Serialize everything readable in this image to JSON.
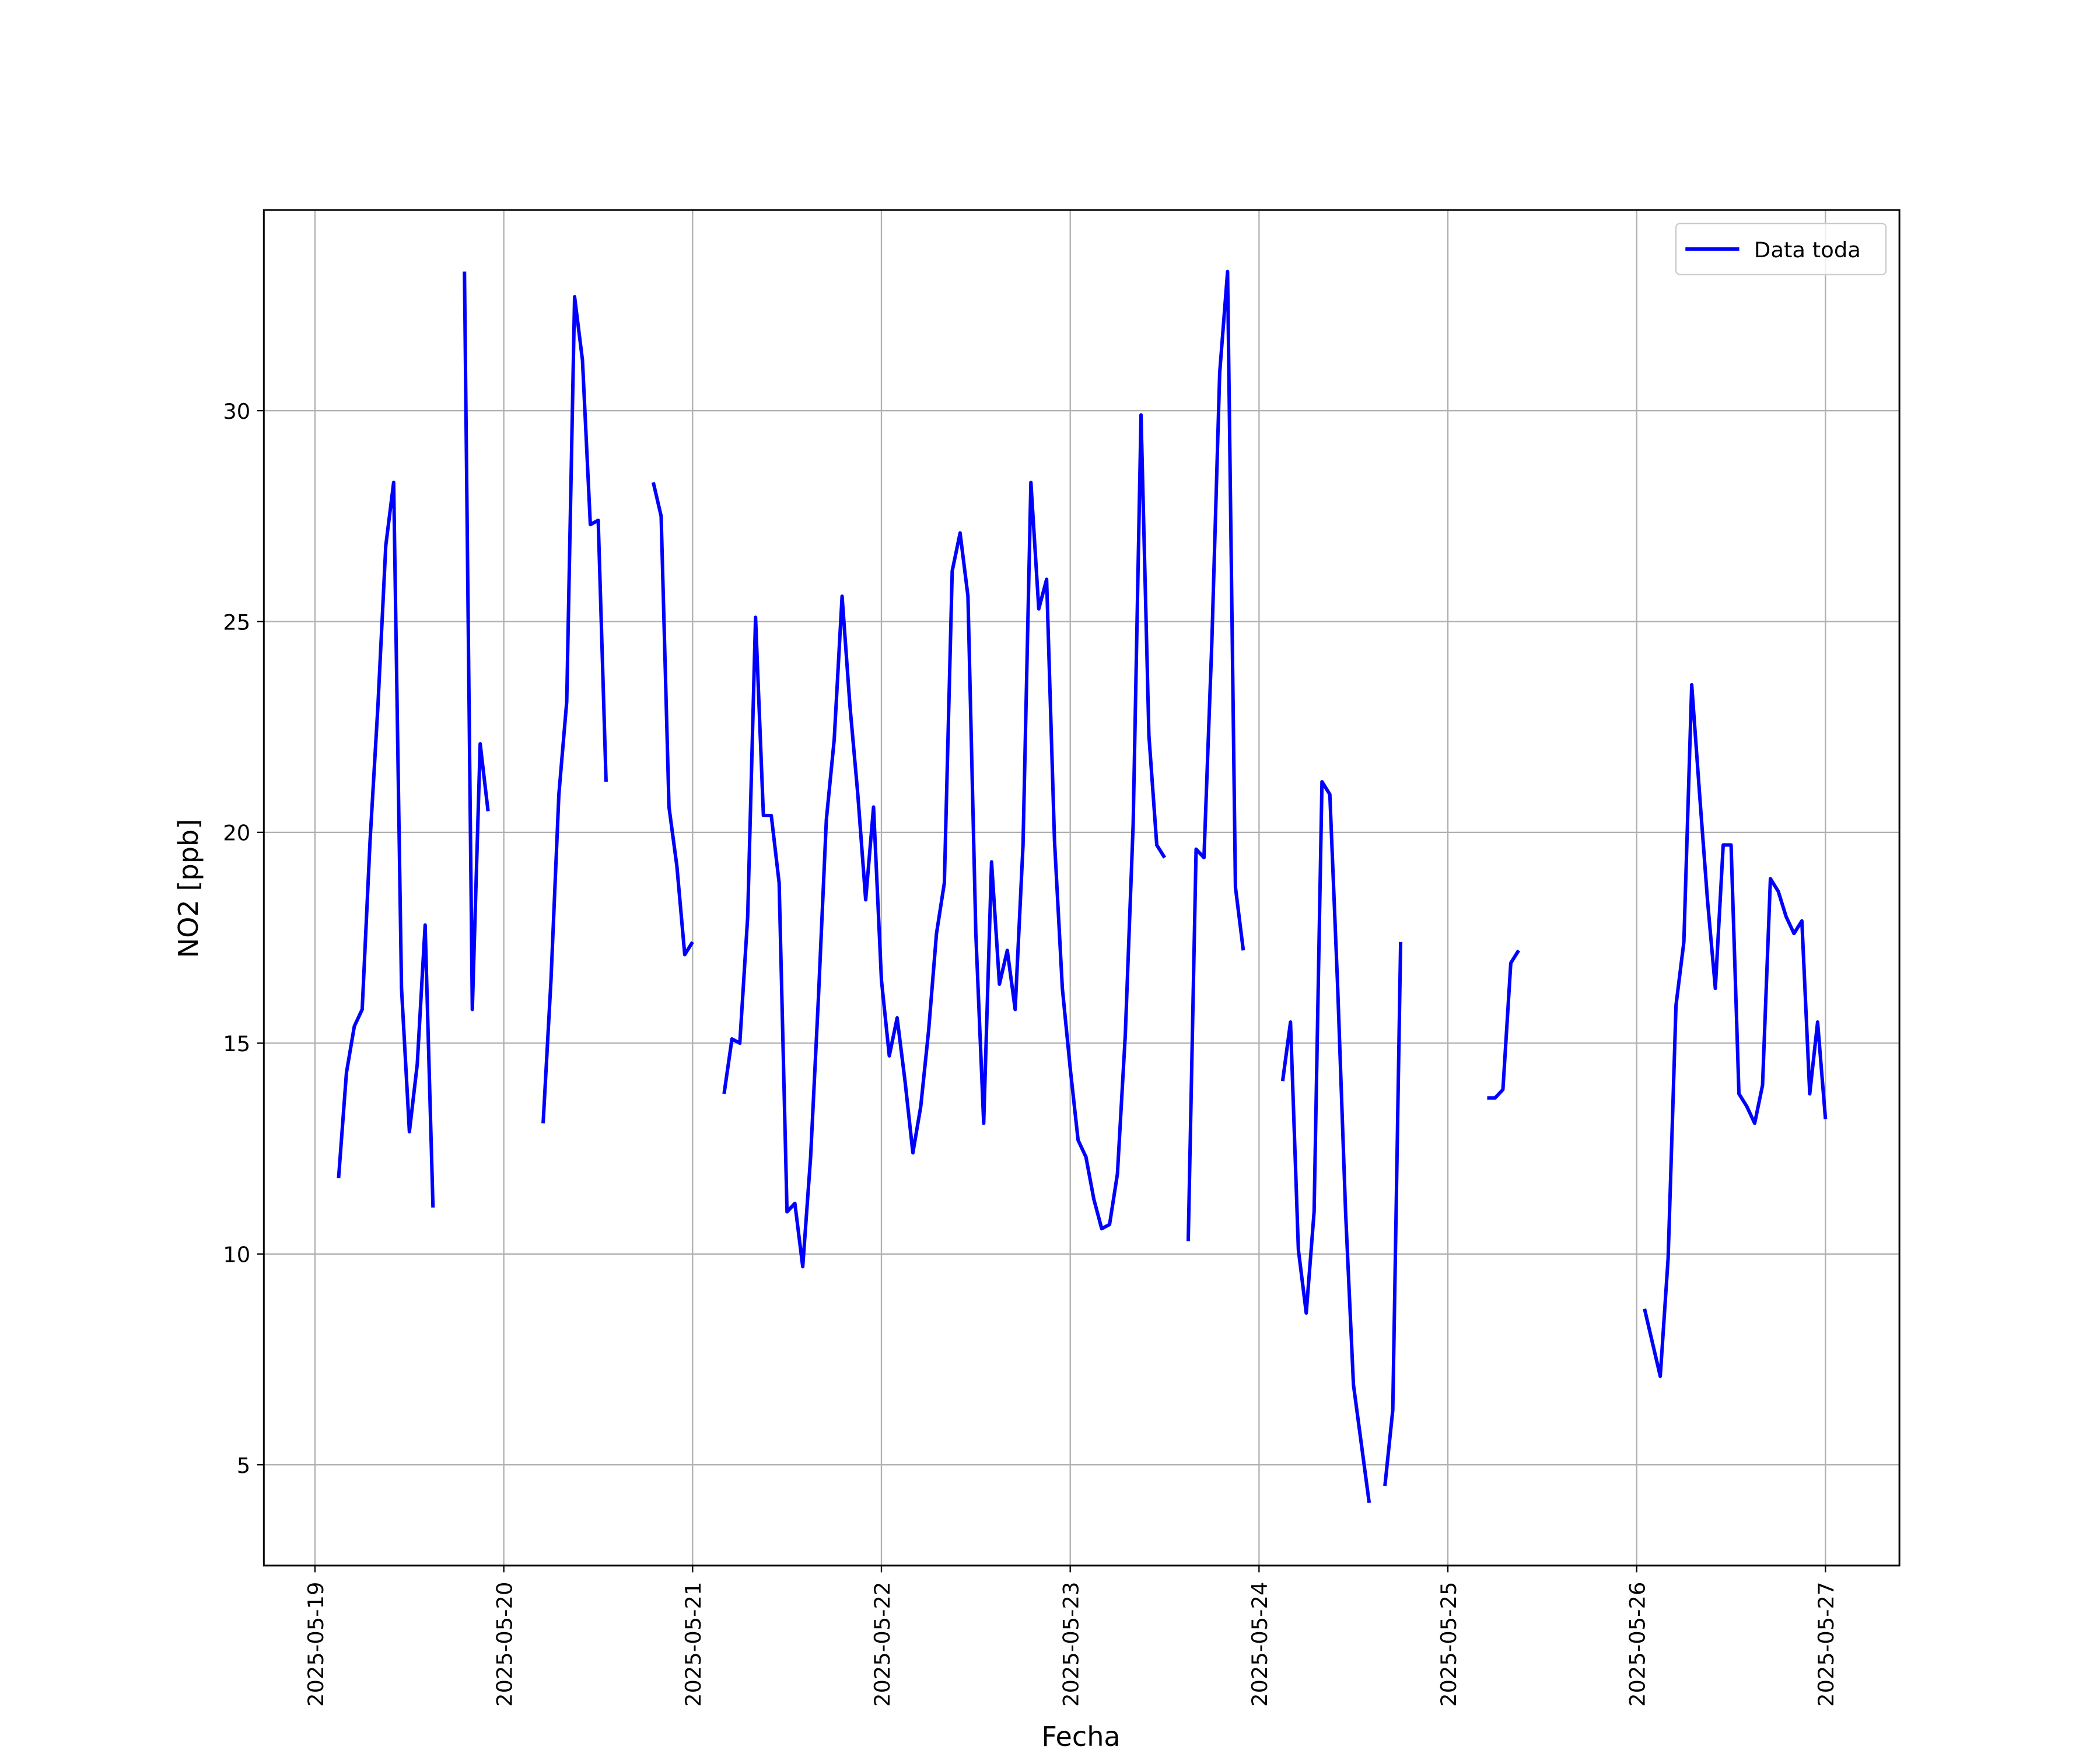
{
  "chart_data": {
    "type": "line",
    "xlabel": "Fecha",
    "ylabel": "NO2 [ppb]",
    "xlim": [
      "2025-05-18 17:30",
      "2025-05-27 09:24"
    ],
    "xticks": [
      "2025-05-19",
      "2025-05-20",
      "2025-05-21",
      "2025-05-22",
      "2025-05-23",
      "2025-05-24",
      "2025-05-25",
      "2025-05-26",
      "2025-05-27"
    ],
    "ylim": [
      2.61,
      34.76
    ],
    "yticks": [
      5,
      10,
      15,
      20,
      25,
      30
    ],
    "grid": true,
    "legend": "upper right",
    "x": [
      "2025-05-19 03:00",
      "2025-05-19 04:00",
      "2025-05-19 05:00",
      "2025-05-19 06:00",
      "2025-05-19 07:00",
      "2025-05-19 08:00",
      "2025-05-19 09:00",
      "2025-05-19 10:00",
      "2025-05-19 11:00",
      "2025-05-19 12:00",
      "2025-05-19 13:00",
      "2025-05-19 14:00",
      "2025-05-19 15:00",
      "2025-05-19 17:00",
      "2025-05-19 19:00",
      "2025-05-19 20:00",
      "2025-05-19 21:00",
      "2025-05-19 22:00",
      "2025-05-20 02:00",
      "2025-05-20 05:00",
      "2025-05-20 06:00",
      "2025-05-20 07:00",
      "2025-05-20 08:00",
      "2025-05-20 09:00",
      "2025-05-20 10:00",
      "2025-05-20 11:00",
      "2025-05-20 12:00",
      "2025-05-20 13:00",
      "2025-05-20 16:00",
      "2025-05-20 19:00",
      "2025-05-20 20:00",
      "2025-05-20 21:00",
      "2025-05-20 22:00",
      "2025-05-20 23:00",
      "2025-05-21 00:00",
      "2025-05-21 02:00",
      "2025-05-21 04:00",
      "2025-05-21 05:00",
      "2025-05-21 06:00",
      "2025-05-21 07:00",
      "2025-05-21 08:00",
      "2025-05-21 09:00",
      "2025-05-21 10:00",
      "2025-05-21 11:00",
      "2025-05-21 12:00",
      "2025-05-21 13:00",
      "2025-05-21 14:00",
      "2025-05-21 15:00",
      "2025-05-21 16:00",
      "2025-05-21 17:00",
      "2025-05-21 18:00",
      "2025-05-21 19:00",
      "2025-05-21 20:00",
      "2025-05-21 21:00",
      "2025-05-21 22:00",
      "2025-05-21 23:00",
      "2025-05-22 00:00",
      "2025-05-22 01:00",
      "2025-05-22 02:00",
      "2025-05-22 03:00",
      "2025-05-22 04:00",
      "2025-05-22 05:00",
      "2025-05-22 06:00",
      "2025-05-22 07:00",
      "2025-05-22 08:00",
      "2025-05-22 09:00",
      "2025-05-22 10:00",
      "2025-05-22 11:00",
      "2025-05-22 12:00",
      "2025-05-22 13:00",
      "2025-05-22 14:00",
      "2025-05-22 15:00",
      "2025-05-22 16:00",
      "2025-05-22 17:00",
      "2025-05-22 18:00",
      "2025-05-22 19:00",
      "2025-05-22 20:00",
      "2025-05-22 21:00",
      "2025-05-22 22:00",
      "2025-05-22 23:00",
      "2025-05-23 00:00",
      "2025-05-23 01:00",
      "2025-05-23 02:00",
      "2025-05-23 03:00",
      "2025-05-23 04:00",
      "2025-05-23 05:00",
      "2025-05-23 06:00",
      "2025-05-23 07:00",
      "2025-05-23 08:00",
      "2025-05-23 09:00",
      "2025-05-23 10:00",
      "2025-05-23 11:00",
      "2025-05-23 12:00",
      "2025-05-23 13:00",
      "2025-05-23 15:00",
      "2025-05-23 16:00",
      "2025-05-23 17:00",
      "2025-05-23 18:00",
      "2025-05-23 19:00",
      "2025-05-23 20:00",
      "2025-05-23 21:00",
      "2025-05-23 22:00",
      "2025-05-24 00:00",
      "2025-05-24 03:00",
      "2025-05-24 04:00",
      "2025-05-24 05:00",
      "2025-05-24 06:00",
      "2025-05-24 07:00",
      "2025-05-24 08:00",
      "2025-05-24 09:00",
      "2025-05-24 10:00",
      "2025-05-24 11:00",
      "2025-05-24 12:00",
      "2025-05-24 13:00",
      "2025-05-24 14:00",
      "2025-05-24 15:00",
      "2025-05-24 16:00",
      "2025-05-24 17:00",
      "2025-05-24 18:00",
      "2025-05-25 00:00",
      "2025-05-25 05:00",
      "2025-05-25 06:00",
      "2025-05-25 07:00",
      "2025-05-25 08:00",
      "2025-05-25 09:00",
      "2025-05-25 12:00",
      "2025-05-26 01:00",
      "2025-05-26 02:00",
      "2025-05-26 03:00",
      "2025-05-26 04:00",
      "2025-05-26 05:00",
      "2025-05-26 06:00",
      "2025-05-26 07:00",
      "2025-05-26 08:00",
      "2025-05-26 09:00",
      "2025-05-26 10:00",
      "2025-05-26 11:00",
      "2025-05-26 12:00",
      "2025-05-26 13:00",
      "2025-05-26 14:00",
      "2025-05-26 15:00",
      "2025-05-26 16:00",
      "2025-05-26 17:00",
      "2025-05-26 18:00",
      "2025-05-26 19:00",
      "2025-05-26 20:00",
      "2025-05-26 21:00",
      "2025-05-26 22:00",
      "2025-05-26 23:00",
      "2025-05-27 00:00"
    ],
    "series": [
      {
        "name": "Data toda",
        "color": "#0000ff",
        "values": [
          11.8,
          14.3,
          15.4,
          15.8,
          19.8,
          23.0,
          26.8,
          28.3,
          16.3,
          12.9,
          14.5,
          17.8,
          11.1,
          null,
          33.3,
          15.8,
          22.1,
          20.5,
          null,
          13.1,
          16.5,
          20.9,
          23.1,
          32.7,
          31.2,
          27.3,
          27.4,
          21.2,
          null,
          28.3,
          27.5,
          20.6,
          19.2,
          17.1,
          17.4,
          null,
          13.8,
          15.1,
          15.0,
          18.0,
          25.1,
          20.4,
          20.4,
          18.8,
          11.0,
          11.2,
          9.7,
          12.3,
          16.1,
          20.3,
          22.2,
          25.6,
          23.0,
          20.9,
          18.4,
          20.6,
          16.5,
          14.7,
          15.6,
          14.1,
          12.4,
          13.5,
          15.3,
          17.6,
          18.8,
          26.2,
          27.1,
          25.6,
          17.6,
          13.1,
          19.3,
          16.4,
          17.2,
          15.8,
          19.7,
          28.3,
          25.3,
          26.0,
          19.8,
          16.3,
          14.4,
          12.7,
          12.3,
          11.3,
          10.6,
          10.7,
          11.9,
          15.2,
          20.2,
          29.9,
          22.3,
          19.7,
          19.4,
          null,
          10.3,
          19.6,
          19.4,
          24.5,
          30.9,
          33.3,
          18.7,
          17.2,
          null,
          14.1,
          15.5,
          10.1,
          8.6,
          11.0,
          21.2,
          20.9,
          16.3,
          11.0,
          6.9,
          5.5,
          4.1,
          null,
          4.5,
          6.3,
          17.4,
          null,
          13.7,
          13.7,
          13.9,
          16.9,
          17.2,
          null,
          8.7,
          7.9,
          7.1,
          9.9,
          15.9,
          17.4,
          23.5,
          20.9,
          18.4,
          16.3,
          19.7,
          19.7,
          13.8,
          13.5,
          13.1,
          14.0,
          18.9,
          18.6,
          18.0,
          17.6,
          17.9,
          13.8,
          15.5,
          13.2
        ]
      }
    ]
  }
}
